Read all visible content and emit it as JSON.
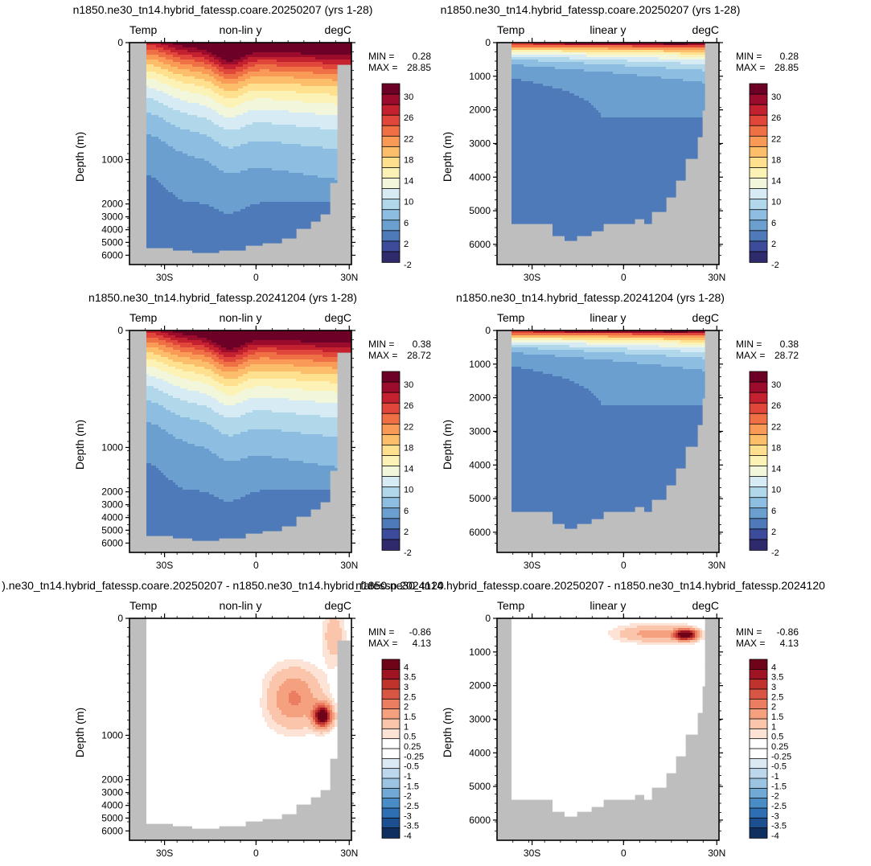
{
  "chart_data": [
    {
      "type": "heatmap",
      "title": "n1850.ne30_tn14.hybrid_fatessp.coare.20250207 (yrs 1-28)",
      "left_label": "Temp",
      "center_label": "non-lin y",
      "right_label": "degC",
      "ylabel": "Depth (m)",
      "x_ticks": [
        "30S",
        "0",
        "30N"
      ],
      "y_ticks": [
        "0",
        "1000",
        "2000",
        "3000",
        "4000",
        "5000",
        "6000"
      ],
      "min_label": "MIN =",
      "min_value": "0.28",
      "max_label": "MAX =",
      "max_value": "28.85",
      "colorbar_labels": [
        "30",
        "26",
        "22",
        "18",
        "14",
        "10",
        "6",
        "2",
        "-2"
      ],
      "palette": "temperature",
      "y_scale": "non-linear",
      "field": "mean"
    },
    {
      "type": "heatmap",
      "title": "n1850.ne30_tn14.hybrid_fatessp.coare.20250207 (yrs 1-28)",
      "left_label": "Temp",
      "center_label": "linear y",
      "right_label": "degC",
      "ylabel": "Depth (m)",
      "x_ticks": [
        "30S",
        "0",
        "30N"
      ],
      "y_ticks": [
        "0",
        "1000",
        "2000",
        "3000",
        "4000",
        "5000",
        "6000"
      ],
      "min_label": "MIN =",
      "min_value": "0.28",
      "max_label": "MAX =",
      "max_value": "28.85",
      "colorbar_labels": [
        "30",
        "26",
        "22",
        "18",
        "14",
        "10",
        "6",
        "2",
        "-2"
      ],
      "palette": "temperature",
      "y_scale": "linear",
      "field": "mean"
    },
    {
      "type": "heatmap",
      "title": "n1850.ne30_tn14.hybrid_fatessp.20241204 (yrs 1-28)",
      "left_label": "Temp",
      "center_label": "non-lin y",
      "right_label": "degC",
      "ylabel": "Depth (m)",
      "x_ticks": [
        "30S",
        "0",
        "30N"
      ],
      "y_ticks": [
        "0",
        "1000",
        "2000",
        "3000",
        "4000",
        "5000",
        "6000"
      ],
      "min_label": "MIN =",
      "min_value": "0.38",
      "max_label": "MAX =",
      "max_value": "28.72",
      "colorbar_labels": [
        "30",
        "26",
        "22",
        "18",
        "14",
        "10",
        "6",
        "2",
        "-2"
      ],
      "palette": "temperature",
      "y_scale": "non-linear",
      "field": "mean"
    },
    {
      "type": "heatmap",
      "title": "n1850.ne30_tn14.hybrid_fatessp.20241204 (yrs 1-28)",
      "left_label": "Temp",
      "center_label": "linear y",
      "right_label": "degC",
      "ylabel": "Depth (m)",
      "x_ticks": [
        "30S",
        "0",
        "30N"
      ],
      "y_ticks": [
        "0",
        "1000",
        "2000",
        "3000",
        "4000",
        "5000",
        "6000"
      ],
      "min_label": "MIN =",
      "min_value": "0.38",
      "max_label": "MAX =",
      "max_value": "28.72",
      "colorbar_labels": [
        "30",
        "26",
        "22",
        "18",
        "14",
        "10",
        "6",
        "2",
        "-2"
      ],
      "palette": "temperature",
      "y_scale": "linear",
      "field": "mean"
    },
    {
      "type": "heatmap",
      "title": ").ne30_tn14.hybrid_fatessp.coare.20250207 - n1850.ne30_tn14.hybrid_fatessp.2024120",
      "left_label": "Temp",
      "center_label": "non-lin y",
      "right_label": "degC",
      "ylabel": "Depth (m)",
      "x_ticks": [
        "30S",
        "0",
        "30N"
      ],
      "y_ticks": [
        "0",
        "1000",
        "2000",
        "3000",
        "4000",
        "5000",
        "6000"
      ],
      "min_label": "MIN =",
      "min_value": "-0.86",
      "max_label": "MAX =",
      "max_value": "4.13",
      "colorbar_labels": [
        "4",
        "3.5",
        "3",
        "2.5",
        "2",
        "1.5",
        "1",
        "0.5",
        "0.25",
        "-0.25",
        "-0.5",
        "-1",
        "-1.5",
        "-2",
        "-2.5",
        "-3",
        "-3.5",
        "-4"
      ],
      "palette": "difference",
      "y_scale": "non-linear",
      "field": "difference"
    },
    {
      "type": "heatmap",
      "title": "n1850.ne30_tn14.hybrid_fatessp.coare.20250207 - n1850.ne30_tn14.hybrid_fatessp.2024120",
      "left_label": "Temp",
      "center_label": "linear y",
      "right_label": "degC",
      "ylabel": "Depth (m)",
      "x_ticks": [
        "30S",
        "0",
        "30N"
      ],
      "y_ticks": [
        "0",
        "1000",
        "2000",
        "3000",
        "4000",
        "5000",
        "6000"
      ],
      "min_label": "MIN =",
      "min_value": "-0.86",
      "max_label": "MAX =",
      "max_value": "4.13",
      "colorbar_labels": [
        "4",
        "3.5",
        "3",
        "2.5",
        "2",
        "1.5",
        "1",
        "0.5",
        "0.25",
        "-0.25",
        "-0.5",
        "-1",
        "-1.5",
        "-2",
        "-2.5",
        "-3",
        "-3.5",
        "-4"
      ],
      "palette": "difference",
      "y_scale": "linear",
      "field": "difference"
    }
  ],
  "colors": {
    "land": "#bebebe",
    "temperature": [
      "#2e2a6b",
      "#3c4b9a",
      "#4e7ab9",
      "#6a9fd0",
      "#8dbde0",
      "#b1d7eb",
      "#d6ebf3",
      "#f2f7dc",
      "#fdf2b6",
      "#fee08e",
      "#fdbe6c",
      "#f99a57",
      "#f07046",
      "#e0463a",
      "#c3212f",
      "#9a0b2c",
      "#6d0026"
    ],
    "difference": [
      "#0e2f5f",
      "#1b4f8f",
      "#2e6eb2",
      "#4a8cc5",
      "#71a9d4",
      "#9bc4e2",
      "#bcd7ec",
      "#dbe9f4",
      "#ffffff",
      "#ffffff",
      "#fde3d5",
      "#fbc5ab",
      "#f5a180",
      "#eb7d60",
      "#d85643",
      "#c0322c",
      "#9f1422",
      "#6f0418"
    ]
  }
}
